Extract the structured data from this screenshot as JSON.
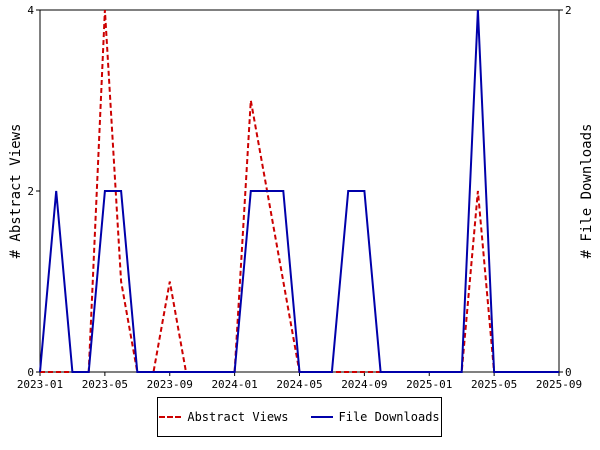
{
  "chart_data": {
    "type": "line",
    "x": [
      "2023-01",
      "2023-02",
      "2023-03",
      "2023-04",
      "2023-05",
      "2023-06",
      "2023-07",
      "2023-08",
      "2023-09",
      "2023-10",
      "2023-11",
      "2023-12",
      "2024-01",
      "2024-02",
      "2024-03",
      "2024-04",
      "2024-05",
      "2024-06",
      "2024-07",
      "2024-08",
      "2024-09",
      "2024-10",
      "2024-11",
      "2024-12",
      "2025-01",
      "2025-02",
      "2025-03",
      "2025-04",
      "2025-05",
      "2025-06",
      "2025-07",
      "2025-08",
      "2025-09"
    ],
    "x_ticks": [
      "2023-01",
      "2023-05",
      "2023-09",
      "2024-01",
      "2024-05",
      "2024-09",
      "2025-01",
      "2025-05",
      "2025-09"
    ],
    "ylabel_left": "# Abstract Views",
    "ylabel_right": "# File Downloads",
    "ylim_left": [
      0,
      4
    ],
    "ylim_right": [
      0,
      2
    ],
    "yticks_left": [
      "0",
      "2",
      "4"
    ],
    "yticks_right": [
      "0",
      "2"
    ],
    "grid": false,
    "legend_position": "bottom",
    "series": [
      {
        "name": "Abstract Views",
        "axis": "left",
        "color": "#cc0000",
        "style": "dashed",
        "values": [
          0,
          0,
          0,
          0,
          4,
          1,
          0,
          0,
          1,
          0,
          0,
          0,
          0,
          3,
          2,
          1,
          0,
          0,
          0,
          0,
          0,
          0,
          0,
          0,
          0,
          0,
          0,
          2,
          0,
          0,
          0,
          0,
          0
        ]
      },
      {
        "name": "File Downloads",
        "axis": "right",
        "color": "#0000aa",
        "style": "solid",
        "values": [
          0,
          1,
          0,
          0,
          1,
          1,
          0,
          0,
          0,
          0,
          0,
          0,
          0,
          1,
          1,
          1,
          0,
          0,
          0,
          1,
          1,
          0,
          0,
          0,
          0,
          0,
          0,
          2,
          0,
          0,
          0,
          0,
          0
        ]
      }
    ]
  }
}
